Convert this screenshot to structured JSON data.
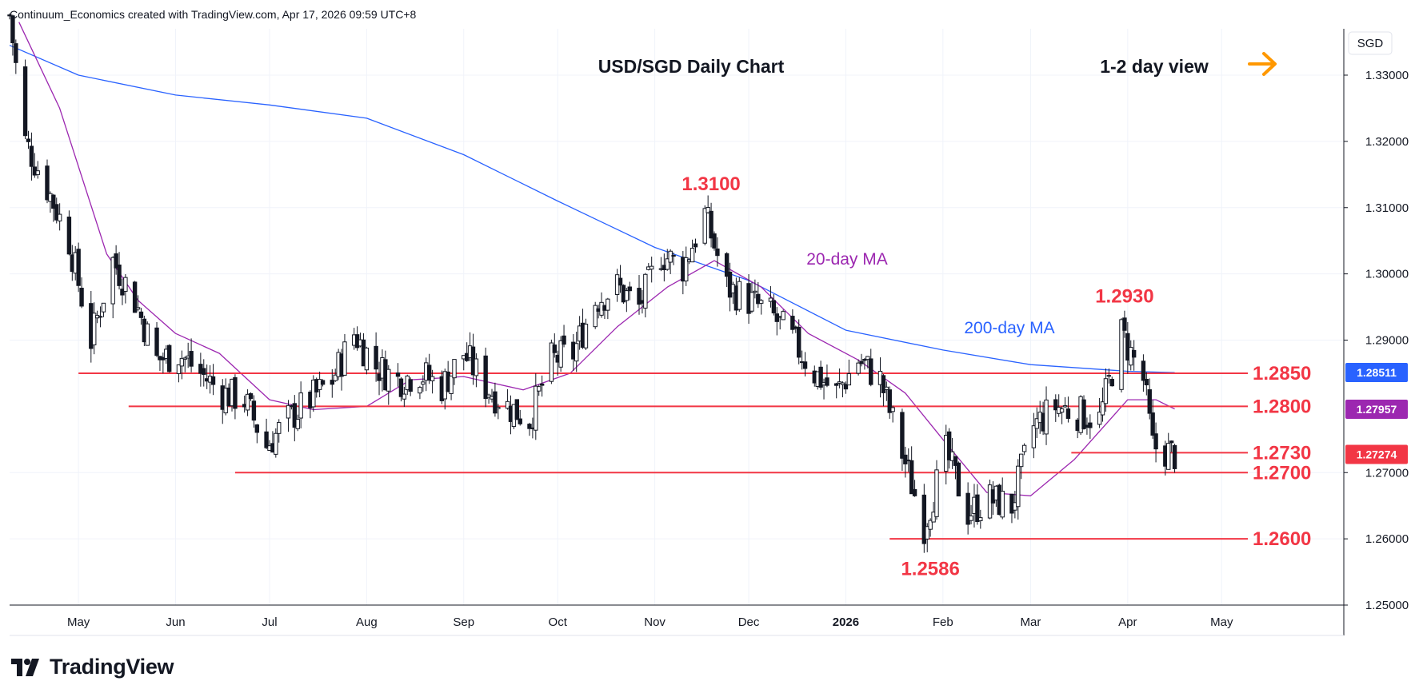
{
  "header": {
    "credit": "Continuum_Economics created with TradingView.com, Apr 17, 2026 09:59 UTC+8"
  },
  "chart_title": "USD/SGD Daily Chart",
  "view_label": "1-2 day view",
  "footer": {
    "brand": "TradingView"
  },
  "colors": {
    "up": "#089981",
    "down": "#f23645",
    "ma200": "#2962ff",
    "ma20": "#9c27b0",
    "levels": "#f23645",
    "arrow": "#ff9800"
  },
  "chart_data": {
    "type": "candlestick",
    "title": "USD/SGD Daily Chart",
    "currency": "SGD",
    "ylim": [
      1.25,
      1.337
    ],
    "y_ticks": [
      "1.33000",
      "1.32000",
      "1.31000",
      "1.30000",
      "1.29000",
      "1.27000",
      "1.26000",
      "1.25000"
    ],
    "x_ticks": [
      {
        "label": "May",
        "date": "2025-05-01"
      },
      {
        "label": "Jun",
        "date": "2025-06-01"
      },
      {
        "label": "Jul",
        "date": "2025-07-01"
      },
      {
        "label": "Aug",
        "date": "2025-08-01"
      },
      {
        "label": "Sep",
        "date": "2025-09-01"
      },
      {
        "label": "Oct",
        "date": "2025-10-01"
      },
      {
        "label": "Nov",
        "date": "2025-11-01"
      },
      {
        "label": "Dec",
        "date": "2025-12-01"
      },
      {
        "label": "2026",
        "date": "2026-01-01",
        "bold": true
      },
      {
        "label": "Feb",
        "date": "2026-02-01"
      },
      {
        "label": "Mar",
        "date": "2026-03-01"
      },
      {
        "label": "Apr",
        "date": "2026-04-01"
      },
      {
        "label": "May",
        "date": "2026-05-01"
      }
    ],
    "date_start": "2025-04-09",
    "date_end": "2026-06-09",
    "close_path": [
      [
        "2025-04-09",
        1.339
      ],
      [
        "2025-04-14",
        1.32
      ],
      [
        "2025-04-21",
        1.313
      ],
      [
        "2025-04-28",
        1.305
      ],
      [
        "2025-05-05",
        1.29
      ],
      [
        "2025-05-12",
        1.302
      ],
      [
        "2025-05-19",
        1.296
      ],
      [
        "2025-05-26",
        1.287
      ],
      [
        "2025-06-02",
        1.288
      ],
      [
        "2025-06-09",
        1.285
      ],
      [
        "2025-06-16",
        1.282
      ],
      [
        "2025-06-23",
        1.281
      ],
      [
        "2025-06-30",
        1.274
      ],
      [
        "2025-07-07",
        1.278
      ],
      [
        "2025-07-14",
        1.281
      ],
      [
        "2025-07-21",
        1.284
      ],
      [
        "2025-07-28",
        1.291
      ],
      [
        "2025-08-04",
        1.286
      ],
      [
        "2025-08-11",
        1.284
      ],
      [
        "2025-08-18",
        1.285
      ],
      [
        "2025-08-25",
        1.283
      ],
      [
        "2025-09-01",
        1.288
      ],
      [
        "2025-09-08",
        1.283
      ],
      [
        "2025-09-15",
        1.28
      ],
      [
        "2025-09-22",
        1.278
      ],
      [
        "2025-09-29",
        1.287
      ],
      [
        "2025-10-06",
        1.288
      ],
      [
        "2025-10-13",
        1.296
      ],
      [
        "2025-10-20",
        1.298
      ],
      [
        "2025-10-27",
        1.295
      ],
      [
        "2025-11-03",
        1.303
      ],
      [
        "2025-11-10",
        1.301
      ],
      [
        "2025-11-17",
        1.309
      ],
      [
        "2025-11-24",
        1.298
      ],
      [
        "2025-12-01",
        1.296
      ],
      [
        "2025-12-08",
        1.294
      ],
      [
        "2025-12-15",
        1.29
      ],
      [
        "2025-12-22",
        1.285
      ],
      [
        "2025-12-29",
        1.282
      ],
      [
        "2026-01-05",
        1.287
      ],
      [
        "2026-01-12",
        1.284
      ],
      [
        "2026-01-19",
        1.273
      ],
      [
        "2026-01-26",
        1.262
      ],
      [
        "2026-02-02",
        1.273
      ],
      [
        "2026-02-09",
        1.264
      ],
      [
        "2026-02-16",
        1.266
      ],
      [
        "2026-02-23",
        1.265
      ],
      [
        "2026-03-02",
        1.277
      ],
      [
        "2026-03-09",
        1.28
      ],
      [
        "2026-03-16",
        1.279
      ],
      [
        "2026-03-23",
        1.278
      ],
      [
        "2026-03-30",
        1.291
      ],
      [
        "2026-04-06",
        1.284
      ],
      [
        "2026-04-09",
        1.274
      ],
      [
        "2026-04-16",
        1.2727
      ]
    ],
    "ma200": [
      [
        "2025-04-09",
        1.3345
      ],
      [
        "2025-05-01",
        1.33
      ],
      [
        "2025-06-01",
        1.327
      ],
      [
        "2025-07-01",
        1.3255
      ],
      [
        "2025-08-01",
        1.3235
      ],
      [
        "2025-09-01",
        1.318
      ],
      [
        "2025-10-01",
        1.311
      ],
      [
        "2025-11-01",
        1.304
      ],
      [
        "2025-12-01",
        1.299
      ],
      [
        "2026-01-01",
        1.2915
      ],
      [
        "2026-02-01",
        1.2885
      ],
      [
        "2026-03-01",
        1.2863
      ],
      [
        "2026-04-01",
        1.2853
      ],
      [
        "2026-04-16",
        1.2851
      ]
    ],
    "ma20": [
      [
        "2025-04-12",
        1.338
      ],
      [
        "2025-04-25",
        1.325
      ],
      [
        "2025-05-10",
        1.303
      ],
      [
        "2025-05-20",
        1.296
      ],
      [
        "2025-06-01",
        1.291
      ],
      [
        "2025-06-15",
        1.288
      ],
      [
        "2025-07-01",
        1.281
      ],
      [
        "2025-07-15",
        1.2795
      ],
      [
        "2025-08-01",
        1.28
      ],
      [
        "2025-08-15",
        1.284
      ],
      [
        "2025-09-01",
        1.2845
      ],
      [
        "2025-09-20",
        1.2825
      ],
      [
        "2025-10-05",
        1.285
      ],
      [
        "2025-10-20",
        1.292
      ],
      [
        "2025-11-05",
        1.298
      ],
      [
        "2025-11-20",
        1.302
      ],
      [
        "2025-12-05",
        1.298
      ],
      [
        "2025-12-20",
        1.291
      ],
      [
        "2026-01-05",
        1.287
      ],
      [
        "2026-01-20",
        1.282
      ],
      [
        "2026-02-01",
        1.275
      ],
      [
        "2026-02-15",
        1.267
      ],
      [
        "2026-03-01",
        1.2665
      ],
      [
        "2026-03-15",
        1.272
      ],
      [
        "2026-04-01",
        1.281
      ],
      [
        "2026-04-10",
        1.281
      ],
      [
        "2026-04-16",
        1.2796
      ]
    ],
    "levels": [
      {
        "label": "1.2850",
        "value": 1.285,
        "from": "2025-05-01"
      },
      {
        "label": "1.2800",
        "value": 1.28,
        "from": "2025-05-17"
      },
      {
        "label": "1.2730",
        "value": 1.273,
        "from": "2026-03-14"
      },
      {
        "label": "1.2700",
        "value": 1.27,
        "from": "2025-06-20"
      },
      {
        "label": "1.2600",
        "value": 1.26,
        "from": "2026-01-15"
      }
    ],
    "annotations": [
      {
        "label": "1.3100",
        "date": "2025-11-19",
        "value": 1.31
      },
      {
        "label": "1.2930",
        "date": "2026-03-31",
        "value": 1.293
      },
      {
        "label": "1.2586",
        "date": "2026-01-28",
        "value": 1.2586
      }
    ],
    "ma_labels": {
      "ma20": "20-day MA",
      "ma200": "200-day MA"
    },
    "price_tags": [
      {
        "label": "1.28511",
        "value": 1.28511,
        "color": "#2962ff"
      },
      {
        "label": "1.27957",
        "value": 1.27957,
        "color": "#9c27b0"
      },
      {
        "label": "1.27274",
        "value": 1.27274,
        "color": "#f23645"
      }
    ]
  }
}
